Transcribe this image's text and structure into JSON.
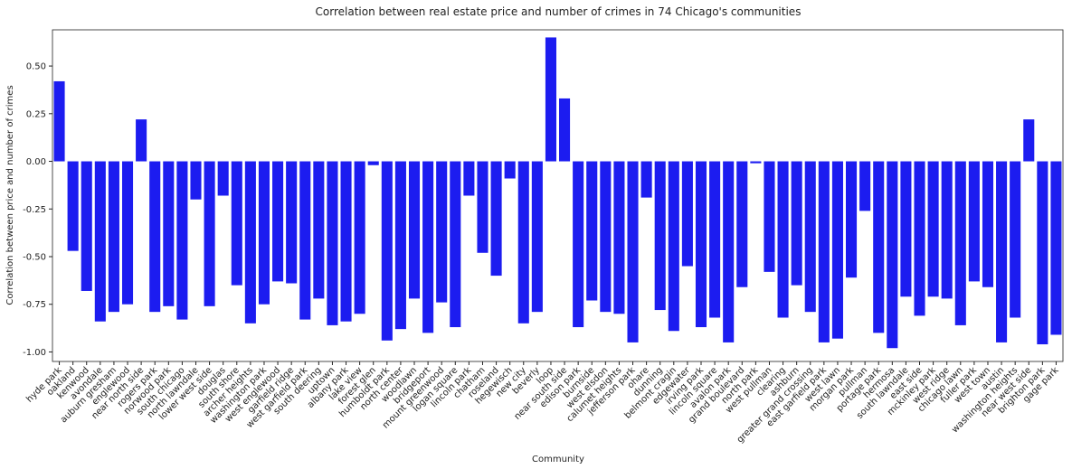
{
  "chart_data": {
    "type": "bar",
    "title": "Correlation between real estate price and number of crimes in 74 Chicago's communities",
    "xlabel": "Community",
    "ylabel": "Correlation between price and number of crimes",
    "color": "#1c1cf0",
    "grid": false,
    "ylim": [
      -1.05,
      0.69
    ],
    "yticks": [
      {
        "value": -1.0,
        "label": "-1.00"
      },
      {
        "value": -0.75,
        "label": "-0.75"
      },
      {
        "value": -0.5,
        "label": "-0.50"
      },
      {
        "value": -0.25,
        "label": "-0.25"
      },
      {
        "value": 0,
        "label": "0.00"
      },
      {
        "value": 0.25,
        "label": "0.25"
      },
      {
        "value": 0.5,
        "label": "0.50"
      }
    ],
    "categories": [
      "hyde park",
      "oakland",
      "kenwood",
      "avondale",
      "auburn gresham",
      "englewood",
      "near north side",
      "rogers park",
      "norwood park",
      "south chicago",
      "north lawndale",
      "lower west side",
      "douglas",
      "south shore",
      "archer heights",
      "washington park",
      "west englewood",
      "garfield ridge",
      "west garfield park",
      "south deering",
      "uptown",
      "albany park",
      "lake view",
      "forest glen",
      "humboldt park",
      "north center",
      "woodlawn",
      "bridgeport",
      "mount greenwood",
      "logan square",
      "lincoln park",
      "chatham",
      "roseland",
      "hegewisch",
      "new city",
      "beverly",
      "loop",
      "near south side",
      "edison park",
      "burnside",
      "west elsdon",
      "calumet heights",
      "jefferson park",
      "ohare",
      "dunning",
      "belmont cragin",
      "edgewater",
      "irving park",
      "lincoln square",
      "avalon park",
      "grand boulevard",
      "north park",
      "west pullman",
      "clearing",
      "ashburn",
      "greater grand crossing",
      "east garfield park",
      "west lawn",
      "morgan park",
      "pullman",
      "portage park",
      "hermosa",
      "south lawndale",
      "east side",
      "mckinley park",
      "west ridge",
      "chicago lawn",
      "fuller park",
      "west town",
      "austin",
      "washington heights",
      "near west side",
      "brighton park",
      "gage park"
    ],
    "values": [
      0.42,
      -0.47,
      -0.68,
      -0.84,
      -0.79,
      -0.75,
      0.22,
      -0.79,
      -0.76,
      -0.83,
      -0.2,
      -0.76,
      -0.18,
      -0.65,
      -0.85,
      -0.75,
      -0.63,
      -0.64,
      -0.83,
      -0.72,
      -0.86,
      -0.84,
      -0.8,
      -0.02,
      -0.94,
      -0.88,
      -0.72,
      -0.9,
      -0.74,
      -0.87,
      -0.18,
      -0.48,
      -0.6,
      -0.09,
      -0.85,
      -0.79,
      0.65,
      0.33,
      -0.87,
      -0.73,
      -0.79,
      -0.8,
      -0.95,
      -0.19,
      -0.78,
      -0.89,
      -0.55,
      -0.87,
      -0.82,
      -0.95,
      -0.66,
      -0.01,
      -0.58,
      -0.82,
      -0.65,
      -0.79,
      -0.95,
      -0.93,
      -0.61,
      -0.26,
      -0.9,
      -0.98,
      -0.71,
      -0.81,
      -0.71,
      -0.72,
      -0.86,
      -0.63,
      -0.66,
      -0.95,
      -0.82,
      0.22,
      -0.96,
      -0.91
    ]
  }
}
